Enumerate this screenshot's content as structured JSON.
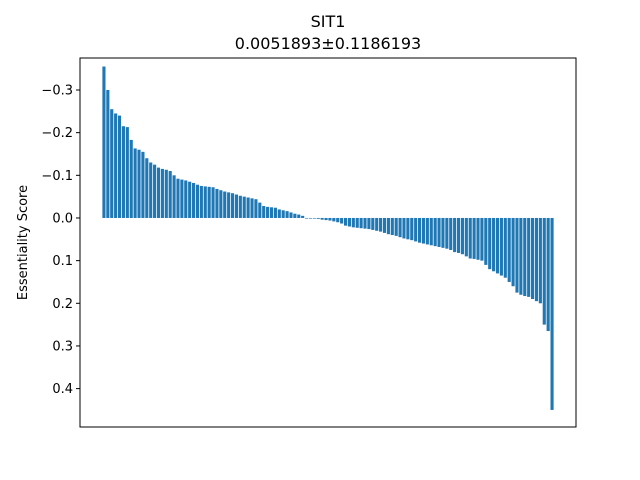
{
  "chart_data": {
    "type": "bar",
    "title": "SIT1",
    "subtitle": "0.0051893±0.1186193",
    "xlabel": "",
    "ylabel": "Essentiality Score",
    "ylim": [
      0.49,
      -0.375
    ],
    "y_inverted": true,
    "yticks": [
      -0.3,
      -0.2,
      -0.1,
      0.0,
      0.1,
      0.2,
      0.3,
      0.4
    ],
    "ytick_labels": [
      "−0.3",
      "−0.2",
      "−0.1",
      "0.0",
      "0.1",
      "0.2",
      "0.3",
      "0.4"
    ],
    "grid": false,
    "bar_color": "#1f77b4",
    "values": [
      -0.355,
      -0.3,
      -0.255,
      -0.245,
      -0.24,
      -0.215,
      -0.213,
      -0.183,
      -0.163,
      -0.16,
      -0.155,
      -0.14,
      -0.13,
      -0.125,
      -0.118,
      -0.115,
      -0.113,
      -0.11,
      -0.1,
      -0.092,
      -0.09,
      -0.088,
      -0.085,
      -0.082,
      -0.078,
      -0.075,
      -0.074,
      -0.073,
      -0.072,
      -0.068,
      -0.065,
      -0.062,
      -0.06,
      -0.058,
      -0.055,
      -0.052,
      -0.05,
      -0.048,
      -0.046,
      -0.044,
      -0.036,
      -0.028,
      -0.026,
      -0.025,
      -0.024,
      -0.02,
      -0.018,
      -0.016,
      -0.013,
      -0.01,
      -0.008,
      -0.005,
      0.0,
      0.0,
      0.0,
      0.002,
      0.004,
      0.005,
      0.006,
      0.008,
      0.01,
      0.013,
      0.018,
      0.02,
      0.022,
      0.023,
      0.024,
      0.025,
      0.026,
      0.028,
      0.03,
      0.032,
      0.035,
      0.038,
      0.04,
      0.042,
      0.045,
      0.048,
      0.05,
      0.052,
      0.055,
      0.058,
      0.06,
      0.062,
      0.064,
      0.066,
      0.068,
      0.07,
      0.072,
      0.075,
      0.08,
      0.082,
      0.085,
      0.09,
      0.095,
      0.096,
      0.098,
      0.1,
      0.11,
      0.12,
      0.125,
      0.13,
      0.135,
      0.14,
      0.15,
      0.16,
      0.175,
      0.18,
      0.183,
      0.185,
      0.19,
      0.195,
      0.2,
      0.25,
      0.265,
      0.45
    ]
  }
}
